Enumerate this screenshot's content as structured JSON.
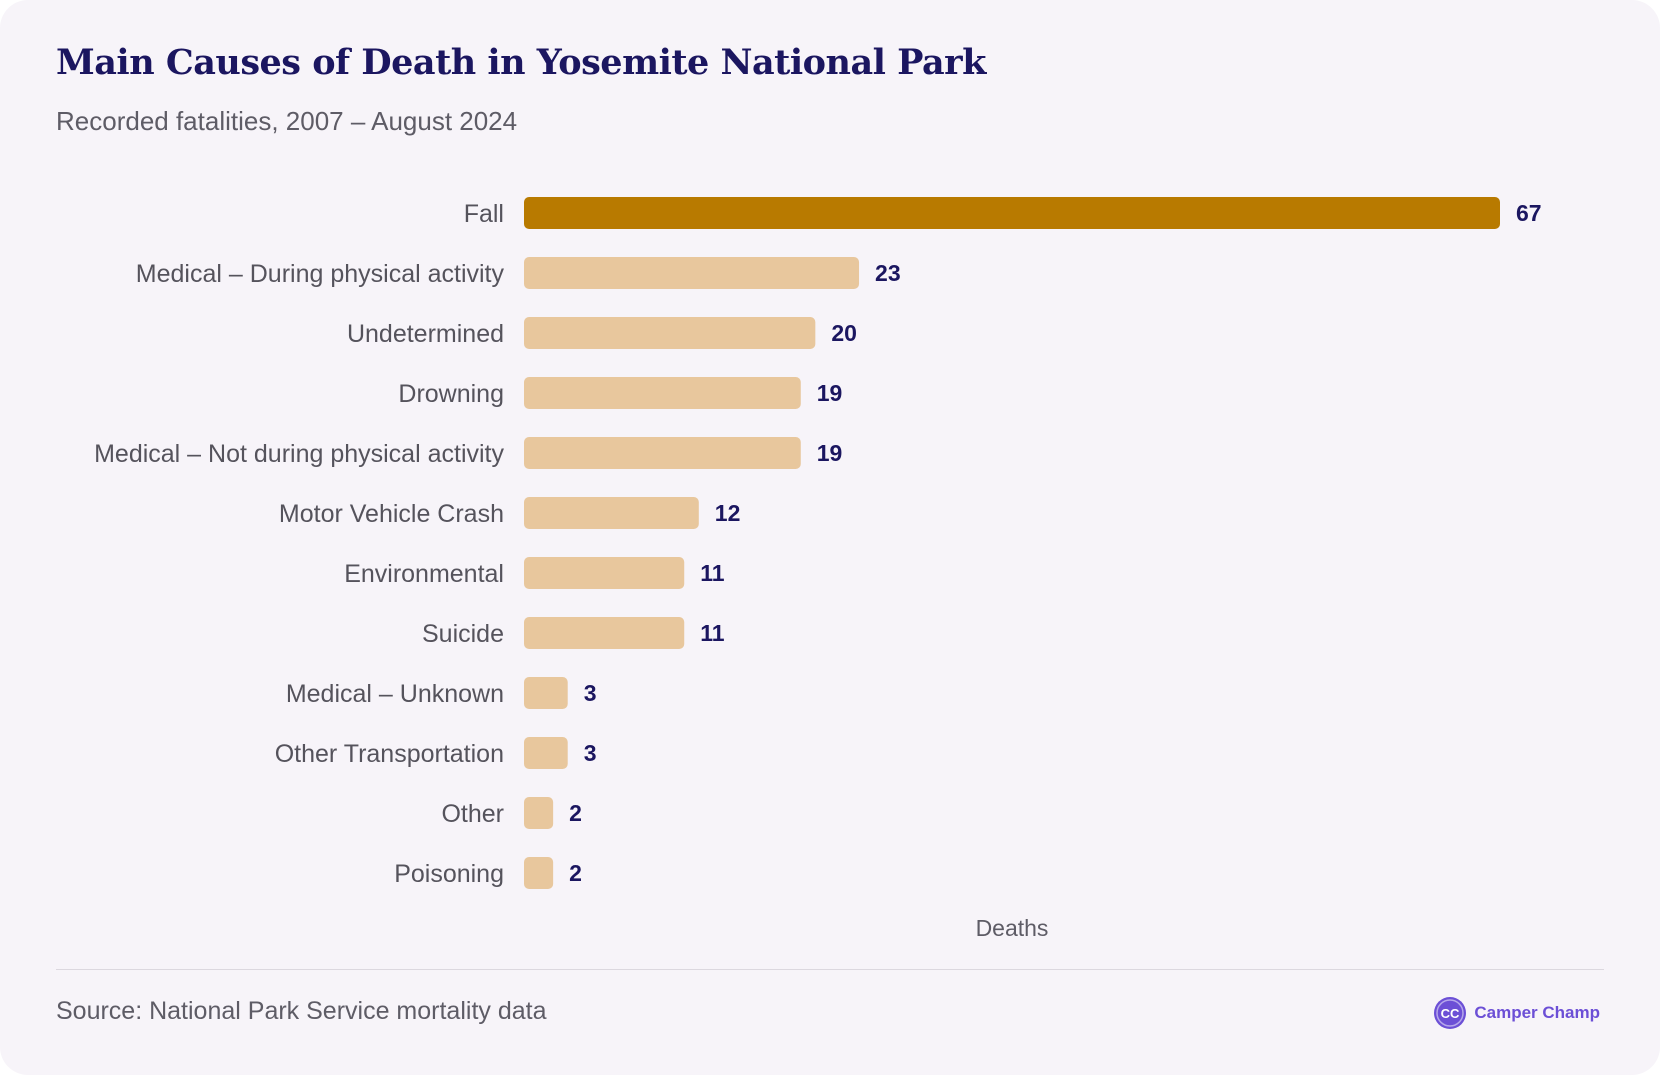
{
  "header": {
    "title": "Main Causes of Death in Yosemite National Park",
    "subtitle": "Recorded fatalities, 2007 – August 2024"
  },
  "chart_data": {
    "type": "bar",
    "orientation": "horizontal",
    "title": "Main Causes of Death in Yosemite National Park",
    "subtitle": "Recorded fatalities, 2007 – August 2024",
    "xlabel": "Deaths",
    "ylabel": "",
    "xlim": [
      0,
      67
    ],
    "grid": false,
    "categories": [
      "Fall",
      "Medical – During physical activity",
      "Undetermined",
      "Drowning",
      "Medical – Not during physical activity",
      "Motor Vehicle Crash",
      "Environmental",
      "Suicide",
      "Medical – Unknown",
      "Other Transportation",
      "Other",
      "Poisoning"
    ],
    "values": [
      67,
      23,
      20,
      19,
      19,
      12,
      11,
      11,
      3,
      3,
      2,
      2
    ],
    "highlight_category": "Fall",
    "colors": {
      "highlight": "#b87a00",
      "default": "#e8c79d",
      "value_label": "#1b1660"
    }
  },
  "footer": {
    "source": "Source: National Park Service mortality data",
    "brand_name": "Camper Champ",
    "brand_logo_text": "CC",
    "brand_color": "#6c4fd6"
  }
}
